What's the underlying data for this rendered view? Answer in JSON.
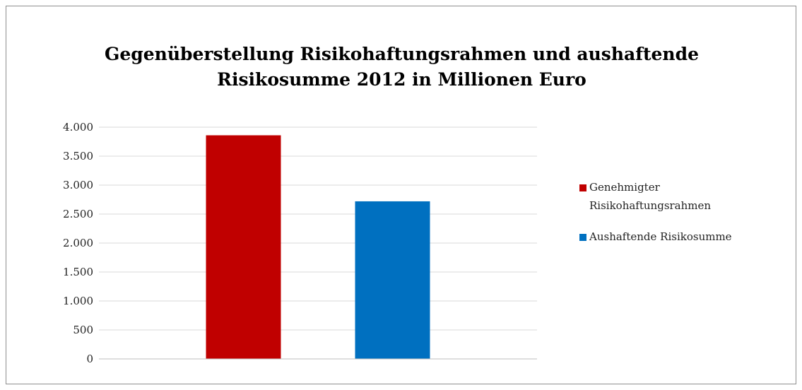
{
  "chart_data": {
    "type": "bar",
    "title": "Gegenüberstellung Risikohaftungsrahmen und aushaftende Risikosumme 2012 in Millionen Euro",
    "title_lines": [
      "Gegenüberstellung Risikohaftungsrahmen und aushaftende",
      "Risikosumme 2012 in Millionen Euro"
    ],
    "categories": [
      ""
    ],
    "series": [
      {
        "name": "Genehmigter Risikohaftungsrahmen",
        "values": [
          3860
        ],
        "color": "#c00000"
      },
      {
        "name": "Aushaftende Risikosumme",
        "values": [
          2720
        ],
        "color": "#0070c0"
      }
    ],
    "ylim": [
      0,
      4000
    ],
    "yticks": [
      0,
      500,
      1000,
      1500,
      2000,
      2500,
      3000,
      3500,
      4000
    ],
    "ytick_labels": [
      "0",
      "500",
      "1.000",
      "1.500",
      "2.000",
      "2.500",
      "3.000",
      "3.500",
      "4.000"
    ],
    "xlabel": "",
    "ylabel": "",
    "grid": true,
    "legend_position": "right"
  }
}
